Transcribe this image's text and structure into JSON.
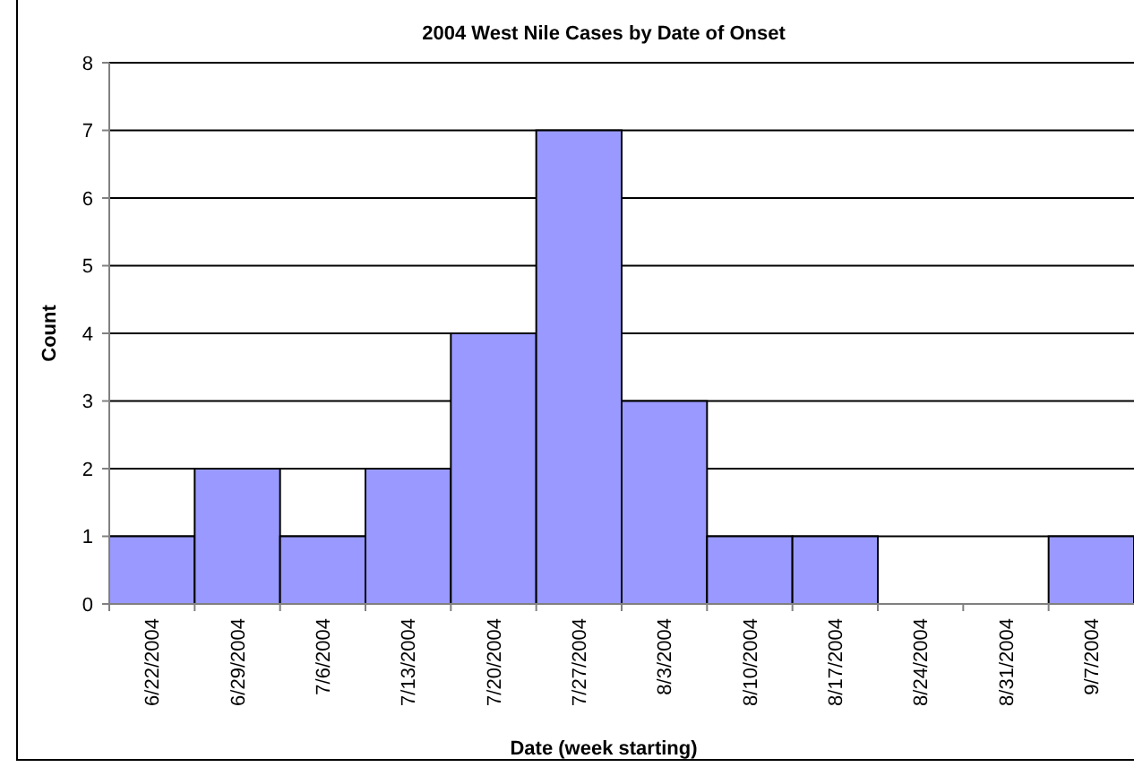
{
  "chart_data": {
    "type": "bar",
    "title": "2004 West Nile Cases by Date of Onset",
    "xlabel": "Date (week starting)",
    "ylabel": "Count",
    "categories": [
      "6/22/2004",
      "6/29/2004",
      "7/6/2004",
      "7/13/2004",
      "7/20/2004",
      "7/27/2004",
      "8/3/2004",
      "8/10/2004",
      "8/17/2004",
      "8/24/2004",
      "8/31/2004",
      "9/7/2004"
    ],
    "values": [
      1,
      2,
      1,
      2,
      4,
      7,
      3,
      1,
      1,
      0,
      0,
      1
    ],
    "color": "#9999ff",
    "ylim": [
      0,
      8
    ],
    "yticks": [
      0,
      1,
      2,
      3,
      4,
      5,
      6,
      7,
      8
    ],
    "grid": "y"
  }
}
